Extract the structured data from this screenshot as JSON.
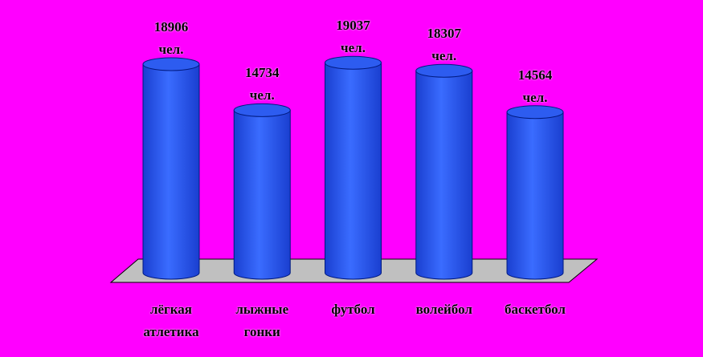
{
  "chart_data": {
    "type": "bar3d",
    "categories": [
      "лёгкая атлетика",
      "лыжные гонки",
      "футбол",
      "волейбол",
      "баскетбол"
    ],
    "values": [
      18906,
      14734,
      19037,
      18307,
      14564
    ],
    "value_labels": [
      "18906 чел.",
      "14734 чел.",
      "19037 чел.",
      "18307 чел.",
      "14564 чел."
    ],
    "color": "#3366ff"
  }
}
